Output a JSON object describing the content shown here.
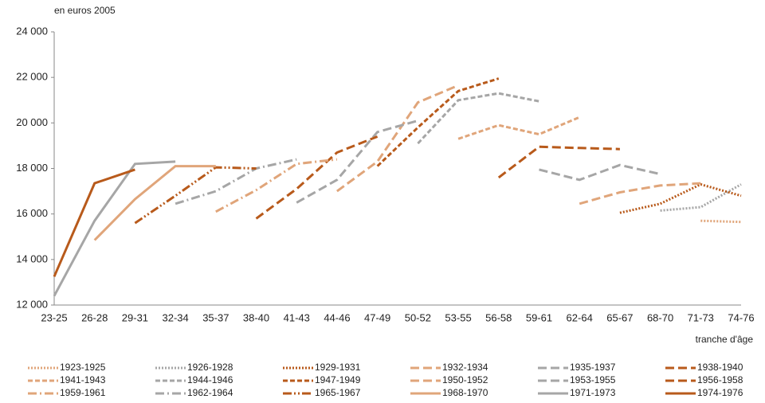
{
  "chart_data": {
    "type": "line",
    "y_label": "en euros 2005",
    "x_label": "tranche d'âge",
    "categories": [
      "23-25",
      "26-28",
      "29-31",
      "32-34",
      "35-37",
      "38-40",
      "41-43",
      "44-46",
      "47-49",
      "50-52",
      "53-55",
      "56-58",
      "59-61",
      "62-64",
      "65-67",
      "68-70",
      "71-73",
      "74-76"
    ],
    "ylim": [
      12000,
      24000
    ],
    "yticks": [
      {
        "value": 12000,
        "label": "12 000"
      },
      {
        "value": 14000,
        "label": "14 000"
      },
      {
        "value": 16000,
        "label": "16 000"
      },
      {
        "value": 18000,
        "label": "18 000"
      },
      {
        "value": 20000,
        "label": "20 000"
      },
      {
        "value": 22000,
        "label": "22 000"
      },
      {
        "value": 24000,
        "label": "24 000"
      }
    ],
    "grid": false,
    "series": [
      {
        "name": "1923-1925",
        "color": "#e0a57a",
        "dash": "dotted",
        "values": [
          null,
          null,
          null,
          null,
          null,
          null,
          null,
          null,
          null,
          null,
          null,
          null,
          null,
          null,
          null,
          null,
          15700,
          15650
        ]
      },
      {
        "name": "1926-1928",
        "color": "#a6a6a6",
        "dash": "dotted",
        "values": [
          null,
          null,
          null,
          null,
          null,
          null,
          null,
          null,
          null,
          null,
          null,
          null,
          null,
          null,
          null,
          16150,
          16300,
          17300
        ]
      },
      {
        "name": "1929-1931",
        "color": "#b85a1b",
        "dash": "dotted",
        "values": [
          null,
          null,
          null,
          null,
          null,
          null,
          null,
          null,
          null,
          null,
          null,
          null,
          null,
          null,
          16050,
          16450,
          17300,
          16800
        ]
      },
      {
        "name": "1932-1934",
        "color": "#e0a57a",
        "dash": "longdash",
        "values": [
          null,
          null,
          null,
          null,
          null,
          null,
          null,
          null,
          null,
          null,
          null,
          null,
          null,
          16450,
          16950,
          17250,
          17350,
          null
        ]
      },
      {
        "name": "1935-1937",
        "color": "#a6a6a6",
        "dash": "longdash",
        "values": [
          null,
          null,
          null,
          null,
          null,
          null,
          null,
          null,
          null,
          null,
          null,
          null,
          17950,
          17500,
          18150,
          17750,
          null,
          null
        ]
      },
      {
        "name": "1938-1940",
        "color": "#b85a1b",
        "dash": "longdash",
        "values": [
          null,
          null,
          null,
          null,
          null,
          null,
          null,
          null,
          null,
          null,
          null,
          17600,
          18950,
          18900,
          18850,
          null,
          null,
          null
        ]
      },
      {
        "name": "1941-1943",
        "color": "#e0a57a",
        "dash": "dashed",
        "values": [
          null,
          null,
          null,
          null,
          null,
          null,
          null,
          null,
          null,
          null,
          19300,
          19900,
          19500,
          20250,
          null,
          null,
          null,
          null
        ]
      },
      {
        "name": "1944-1946",
        "color": "#a6a6a6",
        "dash": "dashed",
        "values": [
          null,
          null,
          null,
          null,
          null,
          null,
          null,
          null,
          null,
          19100,
          21000,
          21300,
          20950,
          null,
          null,
          null,
          null,
          null
        ]
      },
      {
        "name": "1947-1949",
        "color": "#b85a1b",
        "dash": "dashed",
        "values": [
          null,
          null,
          null,
          null,
          null,
          null,
          null,
          null,
          18100,
          19800,
          21400,
          21950,
          null,
          null,
          null,
          null,
          null,
          null
        ]
      },
      {
        "name": "1950-1952",
        "color": "#e0a57a",
        "dash": "longdash",
        "values": [
          null,
          null,
          null,
          null,
          null,
          null,
          null,
          17000,
          18300,
          20900,
          21650,
          null,
          null,
          null,
          null,
          null,
          null,
          null
        ]
      },
      {
        "name": "1953-1955",
        "color": "#a6a6a6",
        "dash": "longdash",
        "values": [
          null,
          null,
          null,
          null,
          null,
          null,
          16500,
          17500,
          19600,
          20100,
          null,
          null,
          null,
          null,
          null,
          null,
          null,
          null
        ]
      },
      {
        "name": "1956-1958",
        "color": "#b85a1b",
        "dash": "longdash",
        "values": [
          null,
          null,
          null,
          null,
          null,
          15800,
          17100,
          18700,
          19400,
          null,
          null,
          null,
          null,
          null,
          null,
          null,
          null,
          null
        ]
      },
      {
        "name": "1959-1961",
        "color": "#e0a57a",
        "dash": "dashdot",
        "values": [
          null,
          null,
          null,
          null,
          16100,
          17050,
          18200,
          18400,
          null,
          null,
          null,
          null,
          null,
          null,
          null,
          null,
          null,
          null
        ]
      },
      {
        "name": "1962-1964",
        "color": "#a6a6a6",
        "dash": "dashdot",
        "values": [
          null,
          null,
          null,
          16450,
          17000,
          18000,
          18400,
          null,
          null,
          null,
          null,
          null,
          null,
          null,
          null,
          null,
          null,
          null
        ]
      },
      {
        "name": "1965-1967",
        "color": "#b85a1b",
        "dash": "dashdotdot",
        "values": [
          null,
          null,
          15600,
          16800,
          18050,
          18000,
          null,
          null,
          null,
          null,
          null,
          null,
          null,
          null,
          null,
          null,
          null,
          null
        ]
      },
      {
        "name": "1968-1970",
        "color": "#e0a57a",
        "dash": "solid",
        "values": [
          null,
          14850,
          16650,
          18100,
          18100,
          null,
          null,
          null,
          null,
          null,
          null,
          null,
          null,
          null,
          null,
          null,
          null,
          null
        ]
      },
      {
        "name": "1971-1973",
        "color": "#a6a6a6",
        "dash": "solid",
        "values": [
          12400,
          15700,
          18200,
          18300,
          null,
          null,
          null,
          null,
          null,
          null,
          null,
          null,
          null,
          null,
          null,
          null,
          null,
          null
        ]
      },
      {
        "name": "1974-1976",
        "color": "#b85a1b",
        "dash": "solid",
        "values": [
          13250,
          17350,
          17950,
          null,
          null,
          null,
          null,
          null,
          null,
          null,
          null,
          null,
          null,
          null,
          null,
          null,
          null,
          null
        ]
      }
    ]
  }
}
